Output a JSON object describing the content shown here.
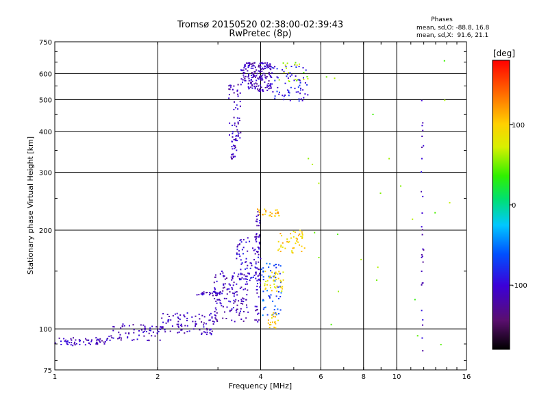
{
  "chart_data": {
    "type": "scatter",
    "title": "Tromsø 20150520 02:38:00-02:39:43",
    "subtitle": "RwPretec (8p)",
    "xlabel": "Frequency [MHz]",
    "ylabel": "Stationary phase Virtual Height [km]",
    "x_scale": "log",
    "y_scale": "log",
    "xlim": [
      1,
      16
    ],
    "ylim": [
      75,
      750
    ],
    "x_ticks": [
      1,
      2,
      4,
      6,
      8,
      10,
      16
    ],
    "x_tick_labels": [
      "1",
      "2",
      "4",
      "6",
      "8",
      "10",
      "16"
    ],
    "y_ticks": [
      75,
      100,
      200,
      300,
      400,
      500,
      600,
      750
    ],
    "y_tick_labels": [
      "75",
      "100",
      "200",
      "300",
      "400",
      "500",
      "600",
      "750"
    ],
    "grid": true,
    "phases_box": {
      "title": "Phases",
      "line_o": "mean, sd,O: -88.8, 16.8",
      "line_x": "mean, sd,X:  91.6, 21.1"
    },
    "colorbar": {
      "label": "[deg]",
      "range": [
        -180,
        180
      ],
      "tick_values": [
        -100,
        0,
        100
      ],
      "tick_labels": [
        "-100",
        "0",
        "100"
      ],
      "colormap": "rainbow (black-purple-blue-cyan-green-yellow-orange-red)"
    },
    "clusters": [
      {
        "x_range": [
          1.0,
          1.42
        ],
        "y_range": [
          89,
          94
        ],
        "phase": -110,
        "count": 60
      },
      {
        "x_range": [
          1.42,
          2.05
        ],
        "y_range": [
          92,
          104
        ],
        "phase": -110,
        "count": 70
      },
      {
        "x_range": [
          2.05,
          2.95
        ],
        "y_range": [
          96,
          112
        ],
        "phase": -110,
        "count": 90
      },
      {
        "x_range": [
          2.6,
          3.1
        ],
        "y_range": [
          127,
          130
        ],
        "phase": -105,
        "count": 25
      },
      {
        "x_range": [
          2.9,
          3.7
        ],
        "y_range": [
          105,
          150
        ],
        "phase": -110,
        "count": 140
      },
      {
        "x_range": [
          3.4,
          3.98
        ],
        "y_range": [
          140,
          190
        ],
        "phase": -100,
        "count": 70
      },
      {
        "x_range": [
          3.85,
          4.0
        ],
        "y_range": [
          105,
          230
        ],
        "phase": -110,
        "count": 60
      },
      {
        "x_range": [
          4.0,
          4.6
        ],
        "y_range": [
          110,
          160
        ],
        "phase": -60,
        "count": 60
      },
      {
        "x_range": [
          4.1,
          4.7
        ],
        "y_range": [
          130,
          150
        ],
        "phase": 90,
        "count": 40
      },
      {
        "x_range": [
          4.5,
          5.4
        ],
        "y_range": [
          170,
          200
        ],
        "phase": 100,
        "count": 45
      },
      {
        "x_range": [
          3.9,
          4.6
        ],
        "y_range": [
          220,
          232
        ],
        "phase": 110,
        "count": 25
      },
      {
        "x_range": [
          4.2,
          4.5
        ],
        "y_range": [
          100,
          112
        ],
        "phase": 100,
        "count": 20
      },
      {
        "x_range": [
          3.28,
          3.42
        ],
        "y_range": [
          330,
          380
        ],
        "phase": -110,
        "count": 25
      },
      {
        "x_range": [
          3.22,
          3.5
        ],
        "y_range": [
          380,
          560
        ],
        "phase": -110,
        "count": 50
      },
      {
        "x_range": [
          3.5,
          4.3
        ],
        "y_range": [
          530,
          650
        ],
        "phase": -110,
        "count": 180
      },
      {
        "x_range": [
          4.3,
          5.5
        ],
        "y_range": [
          490,
          640
        ],
        "phase": -90,
        "count": 70
      },
      {
        "x_range": [
          4.5,
          5.6
        ],
        "y_range": [
          560,
          650
        ],
        "phase": 60,
        "count": 20
      },
      {
        "x_range": [
          11.8,
          12.0
        ],
        "y_range": [
          85,
          530
        ],
        "phase": -110,
        "count": 30
      },
      {
        "x_range": [
          5.5,
          15.5
        ],
        "y_range": [
          80,
          660
        ],
        "phase": 50,
        "count": 25
      }
    ]
  }
}
